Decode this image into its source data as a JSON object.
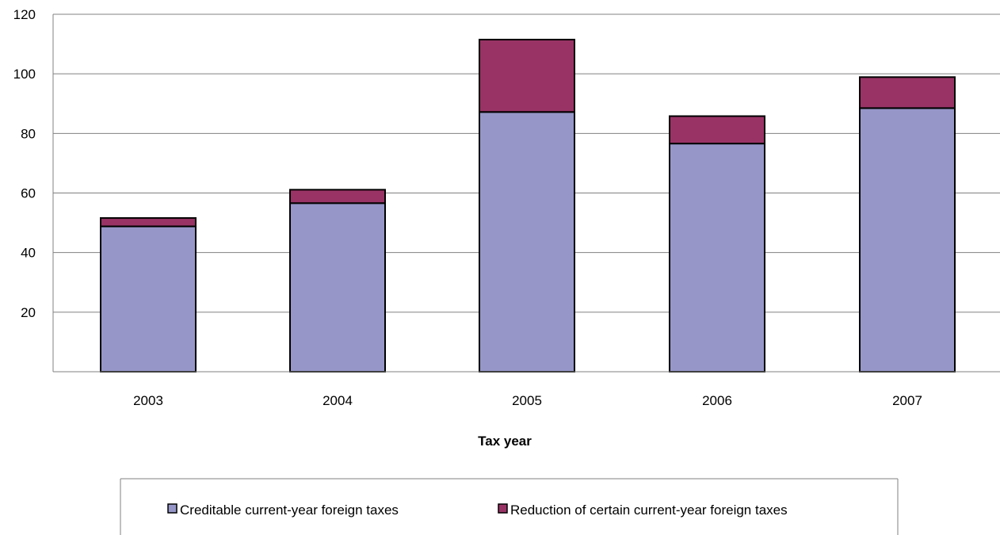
{
  "chart_data": {
    "type": "bar",
    "stacked": true,
    "categories": [
      "2003",
      "2004",
      "2005",
      "2006",
      "2007"
    ],
    "series": [
      {
        "name": "Creditable current-year foreign taxes",
        "values": [
          48.8,
          56.6,
          87.2,
          76.6,
          88.5
        ],
        "color": "#9696C8"
      },
      {
        "name": "Reduction of certain current-year foreign taxes",
        "values": [
          2.8,
          4.5,
          24.3,
          9.2,
          10.4
        ],
        "color": "#993366"
      }
    ],
    "xlabel": "Tax year",
    "ylabel": "",
    "ylim": [
      0,
      120
    ],
    "yticks": [
      20,
      40,
      60,
      80,
      100,
      120
    ],
    "grid": true,
    "legend_position": "bottom"
  }
}
